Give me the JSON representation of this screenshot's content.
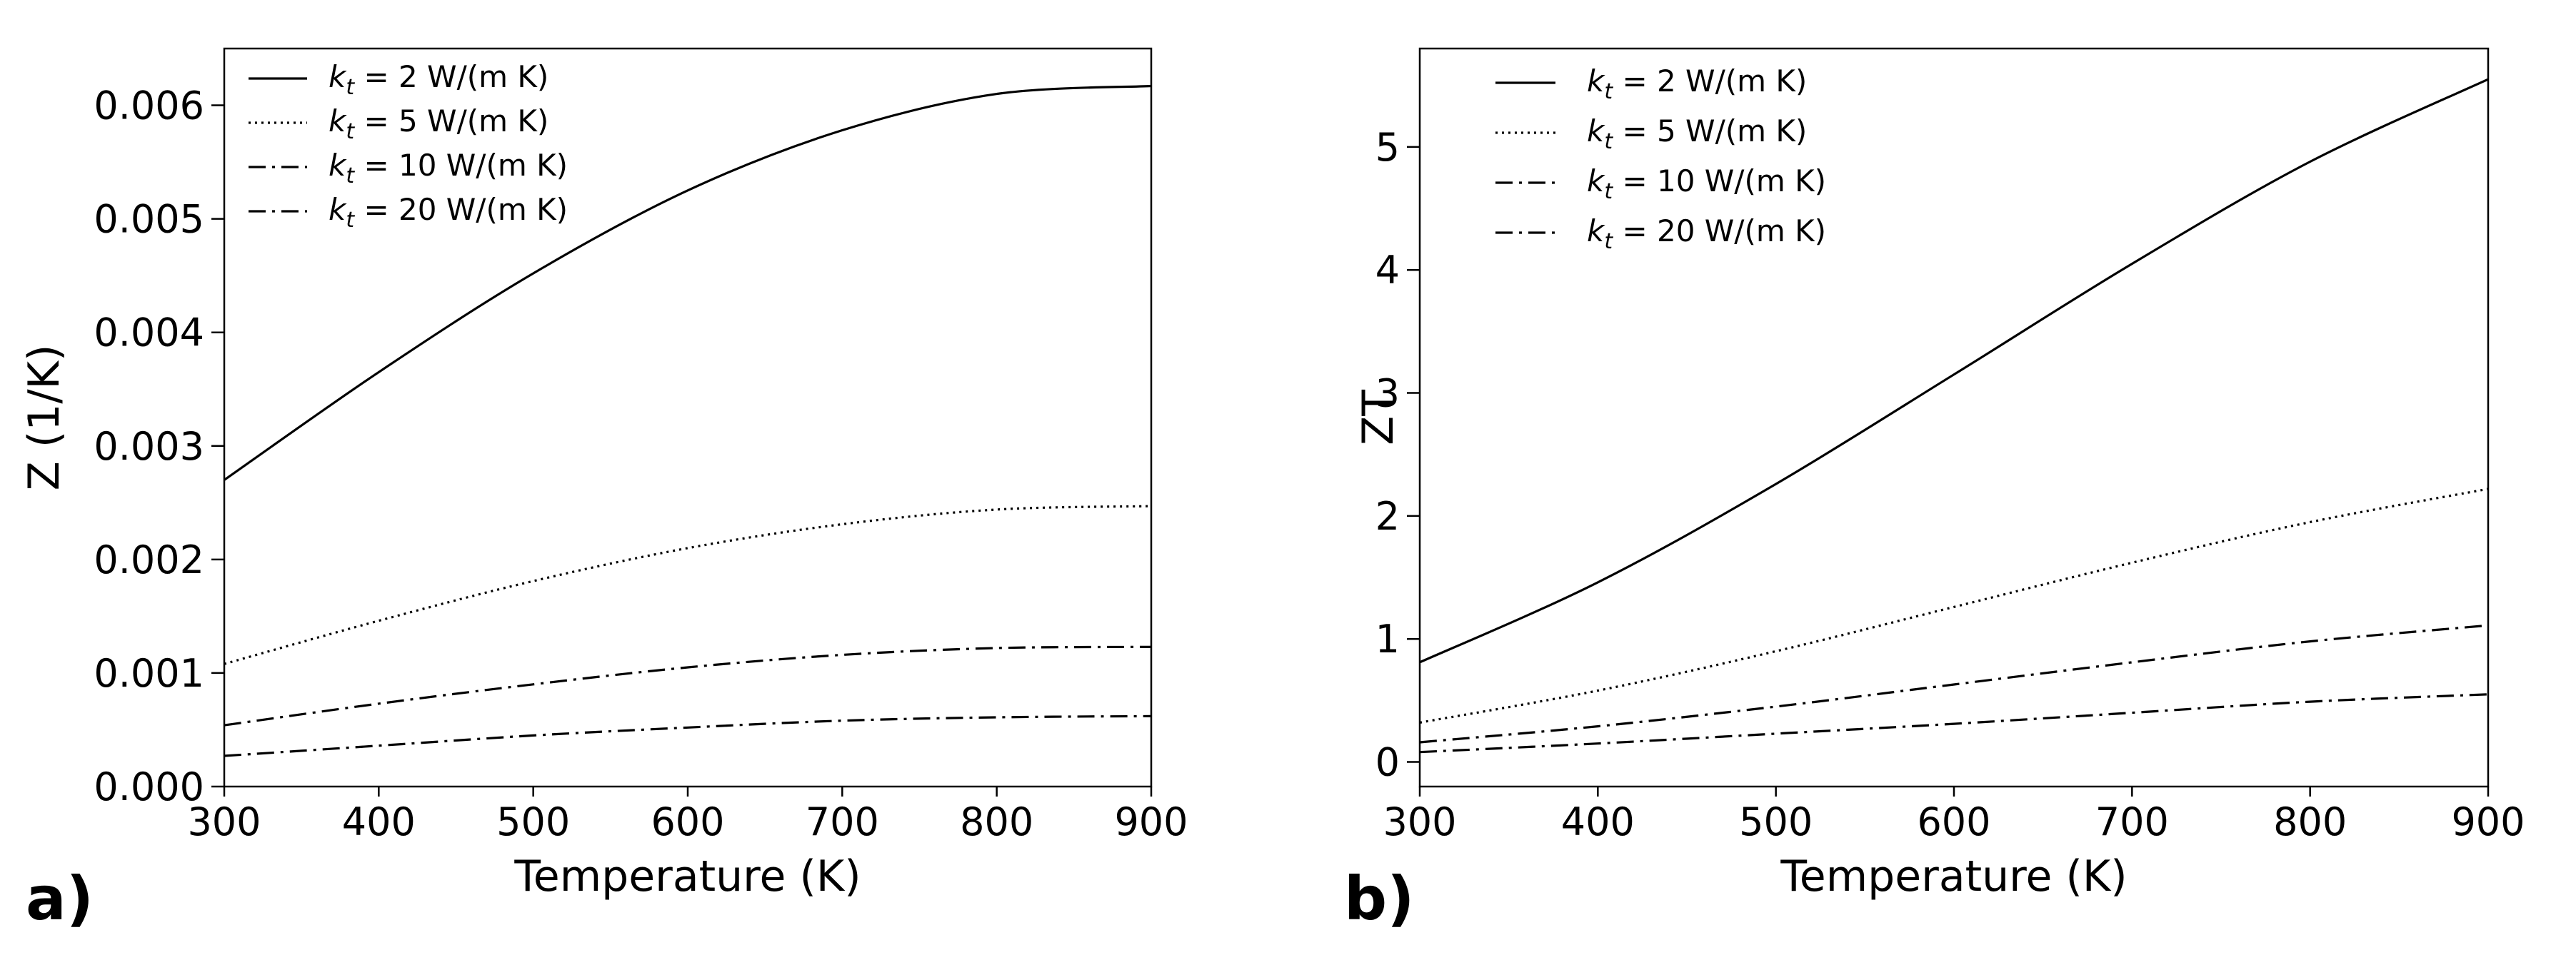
{
  "chart_data": [
    {
      "type": "line",
      "panel_label": "a)",
      "xlabel": "Temperature (K)",
      "ylabel": "Z (1/K)",
      "xlim": [
        300,
        900
      ],
      "ylim": [
        0,
        0.0065
      ],
      "xticks": [
        300,
        400,
        500,
        600,
        700,
        800,
        900
      ],
      "xtick_labels": [
        "300",
        "400",
        "500",
        "600",
        "700",
        "800",
        "900"
      ],
      "yticks": [
        0,
        0.001,
        0.002,
        0.003,
        0.004,
        0.005,
        0.006
      ],
      "ytick_labels": [
        "0.000",
        "0.001",
        "0.002",
        "0.003",
        "0.004",
        "0.005",
        "0.006"
      ],
      "legend_position": "top-left",
      "x": [
        300,
        400,
        500,
        600,
        700,
        800,
        900
      ],
      "series": [
        {
          "name": "k_t = 2 W/(m K)",
          "label_sym": "k",
          "label_sub": "t",
          "label_rest": " = 2 W/(m K)",
          "style": "solid",
          "values": [
            0.0027,
            0.00365,
            0.00452,
            0.00525,
            0.00578,
            0.0061,
            0.00617
          ]
        },
        {
          "name": "k_t = 5 W/(m K)",
          "label_sym": "k",
          "label_sub": "t",
          "label_rest": " = 5 W/(m K)",
          "style": "dotted",
          "values": [
            0.00108,
            0.00146,
            0.00181,
            0.0021,
            0.00231,
            0.00244,
            0.00247
          ]
        },
        {
          "name": "k_t = 10 W/(m K)",
          "label_sym": "k",
          "label_sub": "t",
          "label_rest": " = 10 W/(m K)",
          "style": "dashdot",
          "values": [
            0.00054,
            0.00073,
            0.0009,
            0.00105,
            0.00116,
            0.00122,
            0.00123
          ]
        },
        {
          "name": "k_t = 20 W/(m K)",
          "label_sym": "k",
          "label_sub": "t",
          "label_rest": " = 20 W/(m K)",
          "style": "dashdot",
          "values": [
            0.00027,
            0.00036,
            0.00045,
            0.00052,
            0.00058,
            0.00061,
            0.00062
          ]
        }
      ]
    },
    {
      "type": "line",
      "panel_label": "b)",
      "xlabel": "Temperature (K)",
      "ylabel": "ZT",
      "xlim": [
        300,
        900
      ],
      "ylim": [
        -0.2,
        5.8
      ],
      "xticks": [
        300,
        400,
        500,
        600,
        700,
        800,
        900
      ],
      "xtick_labels": [
        "300",
        "400",
        "500",
        "600",
        "700",
        "800",
        "900"
      ],
      "yticks": [
        0,
        1,
        2,
        3,
        4,
        5
      ],
      "ytick_labels": [
        "0",
        "1",
        "2",
        "3",
        "4",
        "5"
      ],
      "legend_position": "top-left",
      "x": [
        300,
        400,
        500,
        600,
        700,
        800,
        900
      ],
      "series": [
        {
          "name": "k_t = 2 W/(m K)",
          "label_sym": "k",
          "label_sub": "t",
          "label_rest": " = 2 W/(m K)",
          "style": "solid",
          "values": [
            0.81,
            1.46,
            2.26,
            3.15,
            4.05,
            4.88,
            5.55
          ]
        },
        {
          "name": "k_t = 5 W/(m K)",
          "label_sym": "k",
          "label_sub": "t",
          "label_rest": " = 5 W/(m K)",
          "style": "dotted",
          "values": [
            0.32,
            0.58,
            0.9,
            1.26,
            1.62,
            1.95,
            2.22
          ]
        },
        {
          "name": "k_t = 10 W/(m K)",
          "label_sym": "k",
          "label_sub": "t",
          "label_rest": " = 10 W/(m K)",
          "style": "dashdot",
          "values": [
            0.16,
            0.29,
            0.45,
            0.63,
            0.81,
            0.98,
            1.11
          ]
        },
        {
          "name": "k_t = 20 W/(m K)",
          "label_sym": "k",
          "label_sub": "t",
          "label_rest": " = 20 W/(m K)",
          "style": "dashdot",
          "values": [
            0.08,
            0.15,
            0.23,
            0.31,
            0.4,
            0.49,
            0.55
          ]
        }
      ]
    }
  ]
}
